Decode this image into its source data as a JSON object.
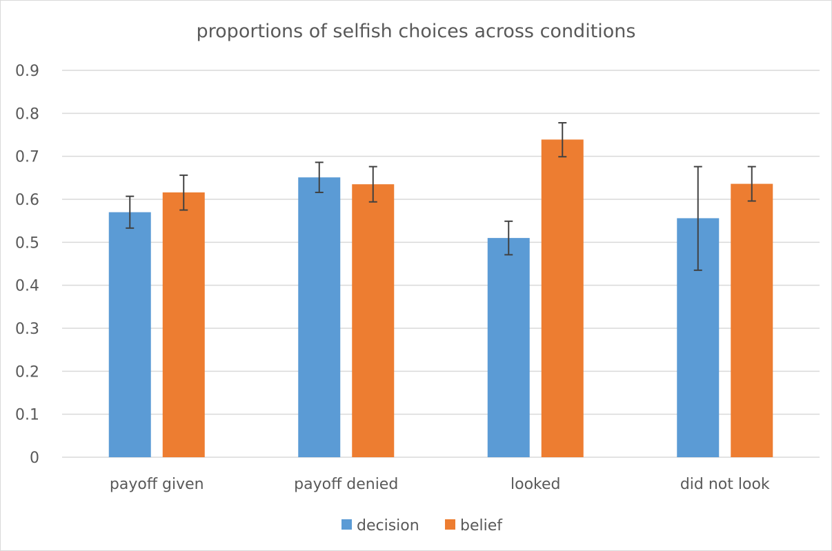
{
  "chart_data": {
    "type": "bar",
    "title": "proportions of selfish choices across conditions",
    "xlabel": "",
    "ylabel": "",
    "categories": [
      "payoff given",
      "payoff denied",
      "looked",
      "did not look"
    ],
    "series": [
      {
        "name": "decision",
        "color": "#5b9bd5",
        "values": [
          0.57,
          0.651,
          0.51,
          0.556
        ],
        "error_low": [
          0.533,
          0.616,
          0.471,
          0.435
        ],
        "error_high": [
          0.607,
          0.686,
          0.549,
          0.676
        ]
      },
      {
        "name": "belief",
        "color": "#ed7d31",
        "values": [
          0.616,
          0.635,
          0.739,
          0.636
        ],
        "error_low": [
          0.575,
          0.594,
          0.699,
          0.596
        ],
        "error_high": [
          0.656,
          0.676,
          0.778,
          0.676
        ]
      }
    ],
    "ylim": [
      0,
      0.9
    ],
    "yticks": [
      "0",
      "0.1",
      "0.2",
      "0.3",
      "0.4",
      "0.5",
      "0.6",
      "0.7",
      "0.8",
      "0.9"
    ],
    "grid": true,
    "legend_position": "bottom",
    "error_bars": true,
    "error_bar_color": "#404040",
    "gridline_color": "#d9d9d9"
  }
}
